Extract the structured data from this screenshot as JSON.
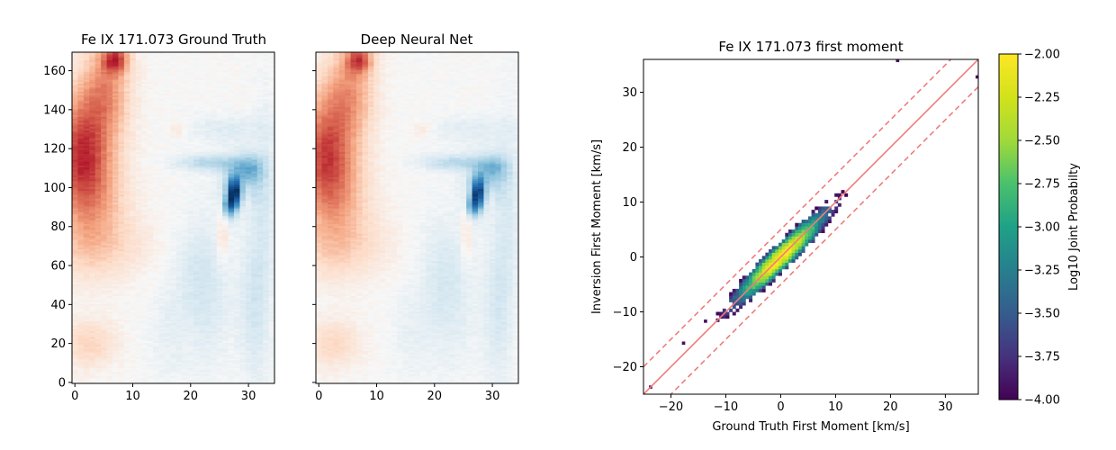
{
  "chart_data": [
    {
      "type": "heatmap",
      "title": "Fe IX 171.073 Ground Truth",
      "xlim": [
        -0.5,
        34.5
      ],
      "ylim": [
        -0.5,
        169.5
      ],
      "xticks": [
        "0",
        "10",
        "20",
        "30"
      ],
      "yticks": [
        "0",
        "20",
        "40",
        "60",
        "80",
        "100",
        "120",
        "140",
        "160"
      ],
      "colormap": "RdBu_r",
      "grid": false
    },
    {
      "type": "heatmap",
      "title": "Deep Neural Net",
      "xlim": [
        -0.5,
        34.5
      ],
      "ylim": [
        -0.5,
        169.5
      ],
      "xticks": [
        "0",
        "10",
        "20",
        "30"
      ],
      "yticks": [],
      "colormap": "RdBu_r",
      "grid": false
    },
    {
      "type": "heatmap",
      "title": "Fe IX 171.073 first moment",
      "xlabel": "Ground Truth First Moment [km/s]",
      "ylabel": "Inversion First Moment [km/s]",
      "xlim": [
        -25,
        36
      ],
      "ylim": [
        -25,
        36
      ],
      "xticks": [
        "−20",
        "−10",
        "0",
        "10",
        "20",
        "30"
      ],
      "yticks": [
        "−20",
        "−10",
        "0",
        "10",
        "20",
        "30"
      ],
      "reference_lines": [
        {
          "intercept": 0,
          "slope": 1,
          "style": "solid",
          "color": "#f07c7c"
        },
        {
          "intercept": 5,
          "slope": 1,
          "style": "dashed",
          "color": "#f07c7c"
        },
        {
          "intercept": -5,
          "slope": 1,
          "style": "dashed",
          "color": "#f07c7c"
        }
      ],
      "colorbar": {
        "label": "Log10 Joint Probabilty",
        "range": [
          -4.0,
          -2.0
        ],
        "ticks": [
          "−2.00",
          "−2.25",
          "−2.50",
          "−2.75",
          "−3.00",
          "−3.25",
          "−3.50",
          "−3.75",
          "−4.00"
        ],
        "colormap": "viridis"
      },
      "grid": false
    }
  ]
}
